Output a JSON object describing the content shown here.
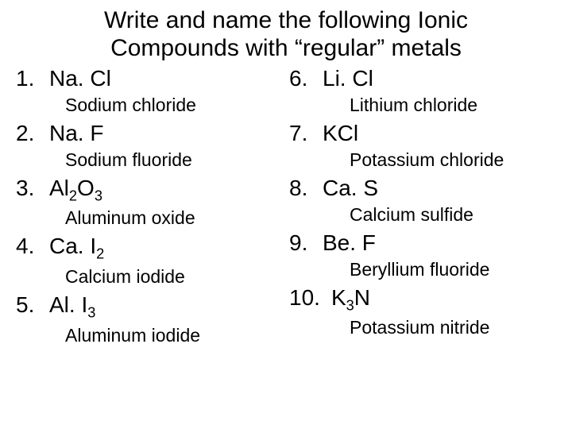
{
  "title_line1": "Write and name the following Ionic",
  "title_line2": "Compounds with “regular” metals",
  "left": [
    {
      "num": "1.",
      "formula": "Na. Cl",
      "name": "Sodium chloride"
    },
    {
      "num": "2.",
      "formula": "Na. F",
      "name": "Sodium fluoride"
    },
    {
      "num": "3.",
      "formula": "Al<sub class=\"sub\">2</sub>O<sub class=\"sub\">3</sub>",
      "name": "Aluminum oxide"
    },
    {
      "num": "4.",
      "formula": "Ca. I<sub class=\"sub\">2</sub>",
      "name": "Calcium iodide"
    },
    {
      "num": "5.",
      "formula": "Al. I<sub class=\"sub\">3</sub>",
      "name": "Aluminum iodide"
    }
  ],
  "right": [
    {
      "num": "6.",
      "formula": "Li. Cl",
      "name": "Lithium chloride"
    },
    {
      "num": "7.",
      "formula": "KCl",
      "name": "Potassium chloride"
    },
    {
      "num": "8.",
      "formula": "Ca. S",
      "name": "Calcium sulfide"
    },
    {
      "num": "9.",
      "formula": "Be. F",
      "name": "Beryllium fluoride"
    },
    {
      "num": "10.",
      "formula": "K<sub class=\"sub\">3</sub>N",
      "name": "Potassium nitride"
    }
  ]
}
